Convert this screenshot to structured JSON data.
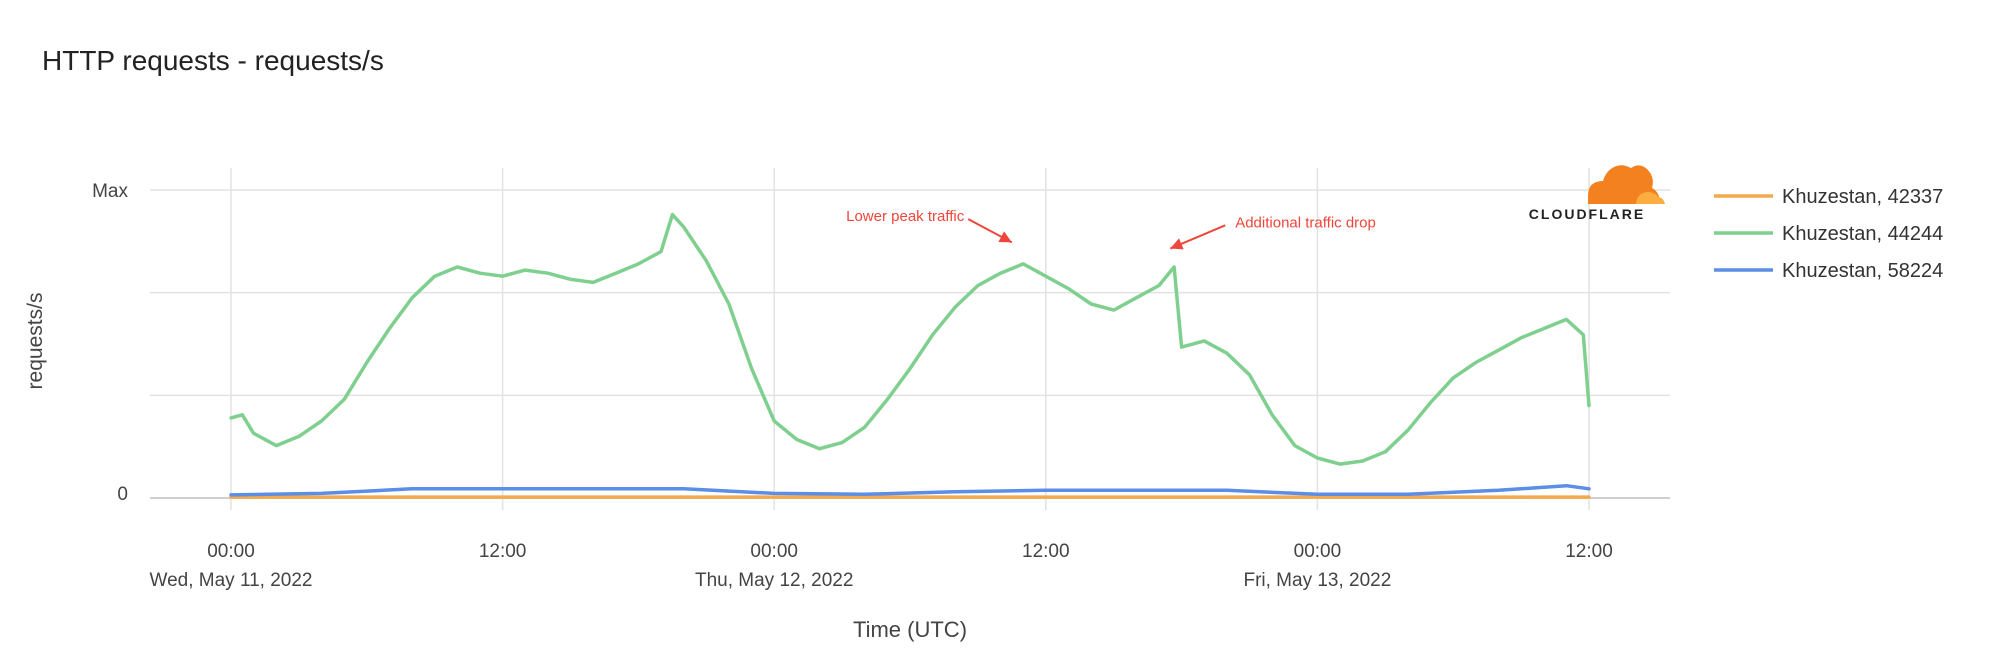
{
  "chart_data": {
    "type": "line",
    "title": "HTTP requests - requests/s",
    "xlabel": "Time (UTC)",
    "ylabel": "requests/s",
    "y_ticks": [
      "Max",
      "0"
    ],
    "ylim": [
      0,
      100
    ],
    "x_range": [
      "2022-05-11T00:00",
      "2022-05-13T12:00"
    ],
    "x_ticks": [
      {
        "time": "2022-05-11T00:00",
        "label": "00:00",
        "sublabel": "Wed, May 11, 2022"
      },
      {
        "time": "2022-05-11T12:00",
        "label": "12:00",
        "sublabel": ""
      },
      {
        "time": "2022-05-12T00:00",
        "label": "00:00",
        "sublabel": "Thu, May 12, 2022"
      },
      {
        "time": "2022-05-12T12:00",
        "label": "12:00",
        "sublabel": ""
      },
      {
        "time": "2022-05-13T00:00",
        "label": "00:00",
        "sublabel": "Fri, May 13, 2022"
      },
      {
        "time": "2022-05-13T12:00",
        "label": "12:00",
        "sublabel": ""
      }
    ],
    "grid": true,
    "legend_position": "right",
    "series": [
      {
        "name": "Khuzestan, 42337",
        "color": "#f4a94a",
        "points": [
          [
            "2022-05-11T00:00",
            0.3
          ],
          [
            "2022-05-13T12:00",
            0.3
          ]
        ]
      },
      {
        "name": "Khuzestan, 44244",
        "color": "#7fcf8f",
        "points": [
          [
            "2022-05-11T00:00",
            26
          ],
          [
            "2022-05-11T00:30",
            27
          ],
          [
            "2022-05-11T01:00",
            21
          ],
          [
            "2022-05-11T02:00",
            17
          ],
          [
            "2022-05-11T03:00",
            20
          ],
          [
            "2022-05-11T04:00",
            25
          ],
          [
            "2022-05-11T05:00",
            32
          ],
          [
            "2022-05-11T06:00",
            44
          ],
          [
            "2022-05-11T07:00",
            55
          ],
          [
            "2022-05-11T08:00",
            65
          ],
          [
            "2022-05-11T09:00",
            72
          ],
          [
            "2022-05-11T10:00",
            75
          ],
          [
            "2022-05-11T11:00",
            73
          ],
          [
            "2022-05-11T12:00",
            72
          ],
          [
            "2022-05-11T13:00",
            74
          ],
          [
            "2022-05-11T14:00",
            73
          ],
          [
            "2022-05-11T15:00",
            71
          ],
          [
            "2022-05-11T16:00",
            70
          ],
          [
            "2022-05-11T17:00",
            73
          ],
          [
            "2022-05-11T18:00",
            76
          ],
          [
            "2022-05-11T19:00",
            80
          ],
          [
            "2022-05-11T19:30",
            92
          ],
          [
            "2022-05-11T20:00",
            88
          ],
          [
            "2022-05-11T21:00",
            77
          ],
          [
            "2022-05-11T22:00",
            63
          ],
          [
            "2022-05-11T23:00",
            42
          ],
          [
            "2022-05-12T00:00",
            25
          ],
          [
            "2022-05-12T01:00",
            19
          ],
          [
            "2022-05-12T02:00",
            16
          ],
          [
            "2022-05-12T03:00",
            18
          ],
          [
            "2022-05-12T04:00",
            23
          ],
          [
            "2022-05-12T05:00",
            32
          ],
          [
            "2022-05-12T06:00",
            42
          ],
          [
            "2022-05-12T07:00",
            53
          ],
          [
            "2022-05-12T08:00",
            62
          ],
          [
            "2022-05-12T09:00",
            69
          ],
          [
            "2022-05-12T10:00",
            73
          ],
          [
            "2022-05-12T11:00",
            76
          ],
          [
            "2022-05-12T12:00",
            72
          ],
          [
            "2022-05-12T13:00",
            68
          ],
          [
            "2022-05-12T14:00",
            63
          ],
          [
            "2022-05-12T15:00",
            61
          ],
          [
            "2022-05-12T16:00",
            65
          ],
          [
            "2022-05-12T17:00",
            69
          ],
          [
            "2022-05-12T17:40",
            75
          ],
          [
            "2022-05-12T18:00",
            49
          ],
          [
            "2022-05-12T19:00",
            51
          ],
          [
            "2022-05-12T20:00",
            47
          ],
          [
            "2022-05-12T21:00",
            40
          ],
          [
            "2022-05-12T22:00",
            27
          ],
          [
            "2022-05-12T23:00",
            17
          ],
          [
            "2022-05-13T00:00",
            13
          ],
          [
            "2022-05-13T01:00",
            11
          ],
          [
            "2022-05-13T02:00",
            12
          ],
          [
            "2022-05-13T03:00",
            15
          ],
          [
            "2022-05-13T04:00",
            22
          ],
          [
            "2022-05-13T05:00",
            31
          ],
          [
            "2022-05-13T06:00",
            39
          ],
          [
            "2022-05-13T07:00",
            44
          ],
          [
            "2022-05-13T08:00",
            48
          ],
          [
            "2022-05-13T09:00",
            52
          ],
          [
            "2022-05-13T10:00",
            55
          ],
          [
            "2022-05-13T11:00",
            58
          ],
          [
            "2022-05-13T11:45",
            53
          ],
          [
            "2022-05-13T12:00",
            30
          ]
        ]
      },
      {
        "name": "Khuzestan, 58224",
        "color": "#5b8ee6",
        "points": [
          [
            "2022-05-11T00:00",
            1
          ],
          [
            "2022-05-11T04:00",
            1.5
          ],
          [
            "2022-05-11T08:00",
            3
          ],
          [
            "2022-05-11T12:00",
            3
          ],
          [
            "2022-05-11T16:00",
            3
          ],
          [
            "2022-05-11T20:00",
            3
          ],
          [
            "2022-05-12T00:00",
            1.5
          ],
          [
            "2022-05-12T04:00",
            1.2
          ],
          [
            "2022-05-12T08:00",
            2
          ],
          [
            "2022-05-12T12:00",
            2.5
          ],
          [
            "2022-05-12T16:00",
            2.5
          ],
          [
            "2022-05-12T20:00",
            2.5
          ],
          [
            "2022-05-13T00:00",
            1.2
          ],
          [
            "2022-05-13T04:00",
            1.2
          ],
          [
            "2022-05-13T08:00",
            2.5
          ],
          [
            "2022-05-13T11:00",
            4
          ],
          [
            "2022-05-13T12:00",
            3
          ]
        ]
      }
    ],
    "annotations": [
      {
        "text": "Lower peak traffic",
        "color": "#f0453a",
        "time": "2022-05-12T08:45",
        "value": 86,
        "target_time": "2022-05-12T10:30",
        "target_value": 83
      },
      {
        "text": "Additional traffic drop",
        "color": "#f0453a",
        "time": "2022-05-12T19:45",
        "value": 84,
        "target_time": "2022-05-12T17:30",
        "target_value": 81
      }
    ]
  },
  "logo": {
    "text": "CLOUDFLARE",
    "cloud_color": "#f48120",
    "cloud_color_light": "#fbad41"
  }
}
